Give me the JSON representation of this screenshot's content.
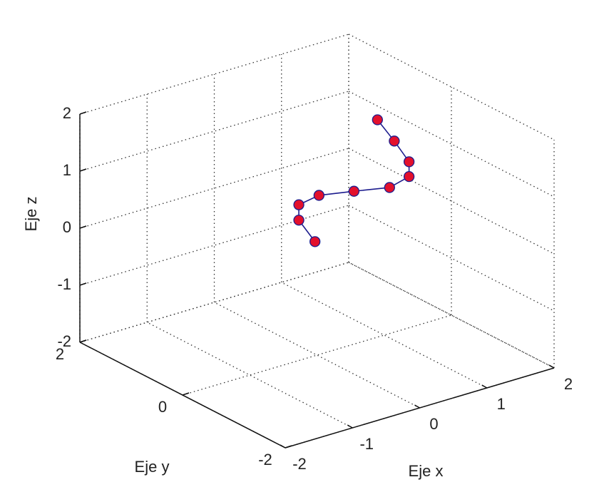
{
  "chart_data": {
    "type": "line3d",
    "x": [
      0.9,
      1.15,
      1.37,
      1.37,
      1.08,
      0.55,
      0.03,
      -0.27,
      -0.27,
      -0.03
    ],
    "y": [
      0,
      0,
      0,
      0,
      0,
      0,
      0,
      0,
      0,
      0
    ],
    "z": [
      1.81,
      1.35,
      0.91,
      0.65,
      0.56,
      0.68,
      0.79,
      0.73,
      0.46,
      0.0
    ],
    "color": "#1c1c8e",
    "marker_color": "#e3102c",
    "xlim": [
      -2,
      2
    ],
    "ylim": [
      -2,
      2
    ],
    "zlim": [
      -2,
      2
    ],
    "xticks": [
      -2,
      -1,
      0,
      1,
      2
    ],
    "yticks": [
      -2,
      0,
      2
    ],
    "zticks": [
      -2,
      -1,
      0,
      1,
      2
    ],
    "xlabel": "Eje x",
    "ylabel": "Eje y",
    "zlabel": "Eje z",
    "grid": true
  }
}
